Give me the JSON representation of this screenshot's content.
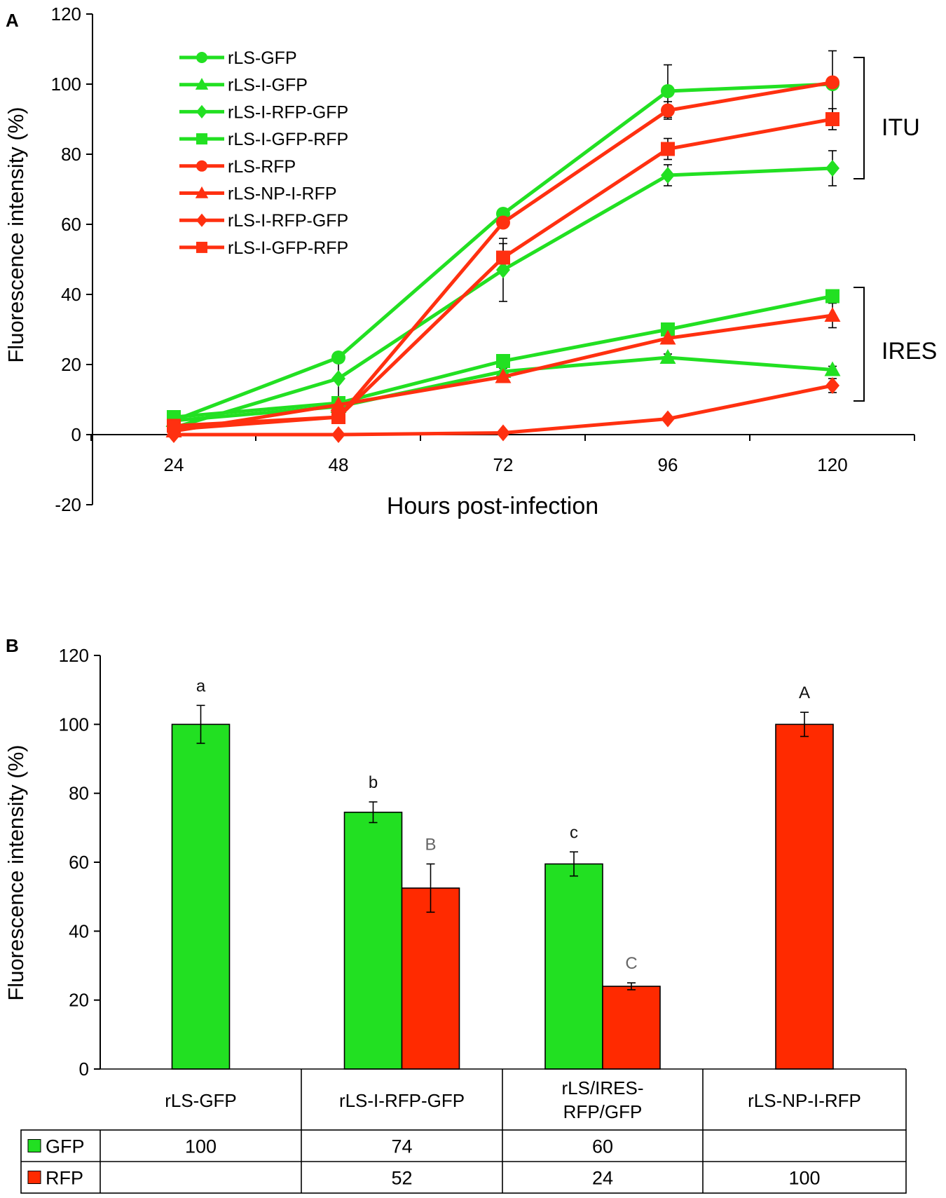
{
  "chart_data": [
    {
      "panel": "A",
      "type": "line",
      "xlabel": "Hours post-infection",
      "ylabel": "Fluorescence intensity (%)",
      "x": [
        24,
        48,
        72,
        96,
        120
      ],
      "ylim": [
        -20,
        120
      ],
      "yticks": [
        -20,
        0,
        20,
        40,
        60,
        80,
        100,
        120
      ],
      "series": [
        {
          "name": "rLS-GFP",
          "color": "#22e022",
          "marker": "circle",
          "values": [
            4,
            22,
            63,
            98,
            100
          ],
          "errors": [
            0.5,
            1,
            1,
            7.5,
            0
          ]
        },
        {
          "name": "rLS-I-GFP",
          "color": "#22e022",
          "marker": "triangle",
          "values": [
            4,
            8,
            18,
            22,
            18.5
          ],
          "errors": [
            0.5,
            1,
            1,
            1,
            1
          ]
        },
        {
          "name": "rLS-I-RFP-GFP",
          "color": "#22e022",
          "marker": "diamond",
          "values": [
            2,
            16,
            47,
            74,
            76
          ],
          "errors": [
            0.5,
            6,
            9,
            3,
            5
          ]
        },
        {
          "name": "rLS-I-GFP-RFP",
          "color": "#22e022",
          "marker": "square",
          "values": [
            5,
            9,
            21,
            30,
            39.5
          ],
          "errors": [
            0.5,
            1,
            1,
            1,
            1
          ]
        },
        {
          "name": "rLS-RFP",
          "color": "#ff3010",
          "marker": "circle",
          "values": [
            1.5,
            5,
            60.5,
            92.5,
            100.5
          ],
          "errors": [
            0.5,
            1,
            1,
            2.5,
            9
          ]
        },
        {
          "name": "rLS-NP-I-RFP",
          "color": "#ff3010",
          "marker": "triangle",
          "values": [
            1,
            8.5,
            16.5,
            27.5,
            34
          ],
          "errors": [
            0.5,
            1,
            1,
            1,
            3.5
          ]
        },
        {
          "name": "rLS-I-RFP-GFP",
          "color": "#ff3010",
          "marker": "diamond",
          "values": [
            0,
            0,
            0.5,
            4.5,
            14
          ],
          "errors": [
            0,
            0,
            0,
            0.5,
            2
          ]
        },
        {
          "name": "rLS-I-GFP-RFP",
          "color": "#ff3010",
          "marker": "square",
          "values": [
            2.5,
            5,
            50.5,
            81.5,
            90
          ],
          "errors": [
            0.5,
            1,
            4,
            3,
            3
          ]
        }
      ],
      "annotations": [
        "ITU",
        "IRES"
      ]
    },
    {
      "panel": "B",
      "type": "bar",
      "ylabel": "Fluorescence intensity (%)",
      "ylim": [
        0,
        120
      ],
      "yticks": [
        0,
        20,
        40,
        60,
        80,
        100,
        120
      ],
      "categories": [
        "rLS-GFP",
        "rLS-I-RFP-GFP",
        "rLS/IRES-\nRFP/GFP",
        "rLS-NP-I-RFP"
      ],
      "series": [
        {
          "name": "GFP",
          "color": "#22e022",
          "values": [
            100,
            74.5,
            59.5,
            null
          ],
          "errors": [
            5.5,
            3,
            3.5,
            null
          ],
          "letters": [
            "a",
            "b",
            "c",
            null
          ],
          "table_values": [
            "100",
            "74",
            "60",
            ""
          ]
        },
        {
          "name": "RFP",
          "color": "#ff2a00",
          "values": [
            null,
            52.5,
            24,
            100
          ],
          "errors": [
            null,
            7,
            1,
            3.5
          ],
          "letters": [
            null,
            "B",
            "C",
            "A"
          ],
          "table_values": [
            "",
            "52",
            "24",
            "100"
          ]
        }
      ]
    }
  ]
}
